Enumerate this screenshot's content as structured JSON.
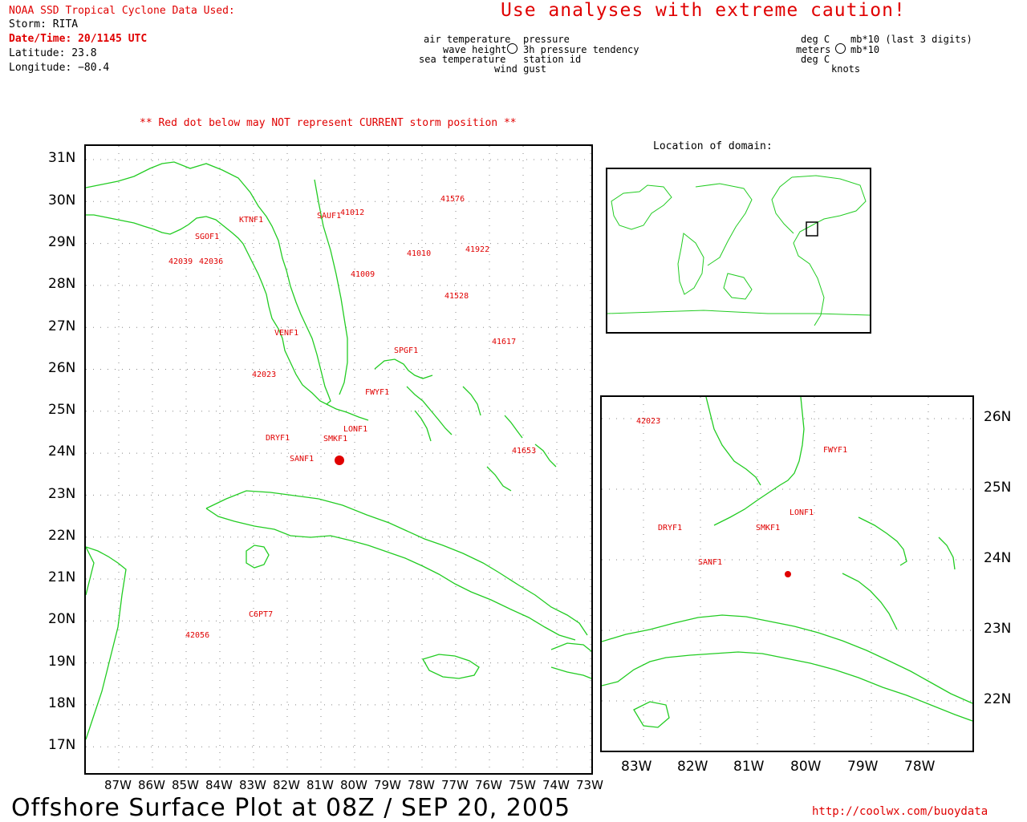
{
  "header": {
    "source": "NOAA SSD Tropical Cyclone Data Used:",
    "storm": "Storm: RITA",
    "datetime": "Date/Time: 20/1145 UTC",
    "latitude": "Latitude: 23.8",
    "longitude": "Longitude: −80.4",
    "warning": "Use analyses with extreme caution!",
    "red_dot_note": "** Red dot below may NOT represent CURRENT storm position **"
  },
  "legend": {
    "left": [
      "air temperature",
      "wave height",
      "sea temperature"
    ],
    "mid": [
      "pressure",
      "3h pressure tendency",
      "station id",
      "wind gust"
    ],
    "units_left": [
      "deg C",
      "meters",
      "deg C"
    ],
    "units_mid": [
      "mb*10 (last 3 digits)",
      "mb*10",
      "knots"
    ]
  },
  "location_label": "Location of domain:",
  "footer": {
    "title": "Offshore Surface Plot at 08Z / SEP 20, 2005",
    "url": "http://coolwx.com/buoydata"
  },
  "main_map": {
    "lat_ticks": [
      "31N",
      "30N",
      "29N",
      "28N",
      "27N",
      "26N",
      "25N",
      "24N",
      "23N",
      "22N",
      "21N",
      "20N",
      "19N",
      "18N",
      "17N"
    ],
    "lon_ticks": [
      "87W",
      "86W",
      "85W",
      "84W",
      "83W",
      "82W",
      "81W",
      "80W",
      "79W",
      "78W",
      "77W",
      "76W",
      "75W",
      "74W",
      "73W"
    ]
  },
  "inset_map": {
    "lat_ticks": [
      "26N",
      "25N",
      "24N",
      "23N",
      "22N"
    ],
    "lon_ticks": [
      "83W",
      "82W",
      "81W",
      "80W",
      "79W",
      "78W"
    ]
  },
  "stations": [
    {
      "id": "41576",
      "color": "#e00000"
    },
    {
      "id": "41012",
      "color": "#e00000"
    },
    {
      "id": "41922",
      "color": "#e00000"
    },
    {
      "id": "41010",
      "color": "#e00000"
    },
    {
      "id": "41009",
      "color": "#e00000"
    },
    {
      "id": "41528",
      "color": "#e00000"
    },
    {
      "id": "41617",
      "color": "#e00000"
    },
    {
      "id": "41653",
      "color": "#e00000"
    },
    {
      "id": "42023",
      "color": "#e00000"
    },
    {
      "id": "42056",
      "color": "#e00000"
    },
    {
      "id": "C6PT7",
      "color": "#e00000"
    },
    {
      "id": "SPGF1",
      "color": "#e00000"
    },
    {
      "id": "FWYF1",
      "color": "#e00000"
    },
    {
      "id": "SANF1",
      "color": "#e00000"
    },
    {
      "id": "SMKF1",
      "color": "#e00000"
    },
    {
      "id": "LONF1",
      "color": "#e00000"
    },
    {
      "id": "DRYF1",
      "color": "#e00000"
    },
    {
      "id": "VENF1",
      "color": "#e00000"
    },
    {
      "id": "SGOF1",
      "color": "#e00000"
    },
    {
      "id": "KTNF1",
      "color": "#e00000"
    },
    {
      "id": "SAUF1",
      "color": "#e00000"
    },
    {
      "id": "42036",
      "color": "#e00000"
    },
    {
      "id": "42039",
      "color": "#e00000"
    }
  ],
  "colors": {
    "coast": "#22cc22",
    "text_red": "#e00000",
    "text_blue": "#2050e0",
    "storm_dot": "#e00000"
  }
}
